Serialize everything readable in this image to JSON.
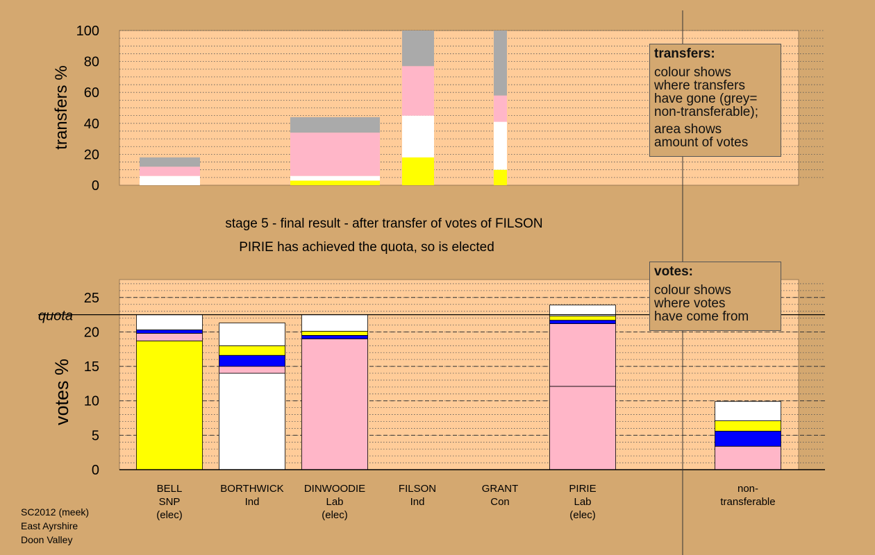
{
  "chart_data": [
    {
      "type": "bar",
      "stacked": true,
      "ylabel": "transfers %",
      "ylim": [
        0,
        100
      ],
      "yticks": [
        0,
        20,
        40,
        60,
        80,
        100
      ],
      "grid": true,
      "minor_grid_step": 5,
      "series": [
        {
          "color": "#ffff00",
          "values": [
            0,
            3,
            18,
            10
          ]
        },
        {
          "color": "#ffffff",
          "values": [
            6,
            3,
            27,
            31
          ]
        },
        {
          "color": "#ffb6c8",
          "values": [
            6,
            28,
            32,
            17
          ]
        },
        {
          "color": "#aaaaaa",
          "values": [
            6,
            10,
            23,
            42
          ]
        }
      ],
      "note": {
        "title": "transfers:",
        "paragraphs": [
          [
            "colour shows",
            "where transfers",
            "have gone (grey=",
            "non-transferable);"
          ],
          [
            "area shows",
            "amount of votes"
          ]
        ]
      }
    },
    {
      "type": "bar",
      "stacked": true,
      "title": "stage 5 - final result - after transfer of votes of FILSON",
      "subtitle": "PIRIE has achieved the quota, so is elected",
      "ylabel": "votes %",
      "ylim": [
        0,
        27.6
      ],
      "yticks": [
        0,
        5,
        10,
        15,
        20,
        25
      ],
      "grid": true,
      "minor_grid_step": 1,
      "major_grid_dashed": true,
      "quota": {
        "label": "quota",
        "value": 22.5
      },
      "categories": [
        "BELL\nSNP\n(elec)",
        "BORTHWICK\nInd",
        "DINWOODIE\nLab\n(elec)",
        "FILSON\nInd",
        "GRANT\nCon",
        "PIRIE\nLab\n(elec)",
        null,
        "non-\ntransferable"
      ],
      "series": [
        {
          "colors": [
            "#ffff00",
            "#ffffff",
            "#ffb6c8",
            "#ffffff",
            "#0000ff",
            "#ffb6c8",
            null,
            "#aaaaaa"
          ],
          "values": [
            18.7,
            14.0,
            19.0,
            0,
            0,
            12.1,
            null,
            0
          ]
        },
        {
          "color": "#ffb6c8",
          "values": [
            1.1,
            1.0,
            0,
            0,
            0,
            9.1,
            null,
            3.4
          ]
        },
        {
          "color": "#0000ff",
          "values": [
            0.5,
            1.6,
            0.5,
            0,
            0,
            0.5,
            null,
            2.2
          ]
        },
        {
          "color": "#ffff00",
          "values": [
            0,
            1.4,
            0.6,
            0,
            0,
            0.6,
            null,
            1.5
          ]
        },
        {
          "color": "#ffffff",
          "values": [
            2.2,
            3.3,
            2.4,
            0,
            0,
            1.6,
            null,
            2.8
          ]
        }
      ],
      "note": {
        "title": "votes:",
        "paragraphs": [
          [
            "colour shows",
            "where votes",
            "have come from"
          ]
        ]
      }
    }
  ],
  "footer": [
    "SC2012 (meek)",
    "East Ayrshire",
    "Doon Valley"
  ]
}
